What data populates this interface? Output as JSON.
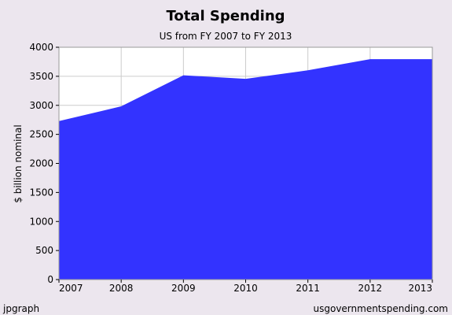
{
  "chart_data": {
    "type": "area",
    "title": "Total Spending",
    "subtitle": "US from FY 2007 to FY 2013",
    "ylabel": "$ billion nominal",
    "xlabel": "",
    "x": [
      "2007",
      "2008",
      "2009",
      "2010",
      "2011",
      "2012",
      "2013"
    ],
    "series": [
      {
        "values": [
          2728,
          2983,
          3517,
          3456,
          3603,
          3795,
          3795
        ]
      }
    ],
    "ylim": [
      0,
      4000
    ],
    "yticks": [
      "0",
      "500",
      "1000",
      "1500",
      "2000",
      "2500",
      "3000",
      "3500",
      "4000"
    ],
    "grid": true,
    "colors": {
      "area": "#3333ff",
      "plot_background": "#ffffff",
      "grid": "#cccccc",
      "page_background": "#ece6ee"
    }
  },
  "footer": {
    "left": "jpgraph",
    "right": "usgovernmentspending.com"
  }
}
